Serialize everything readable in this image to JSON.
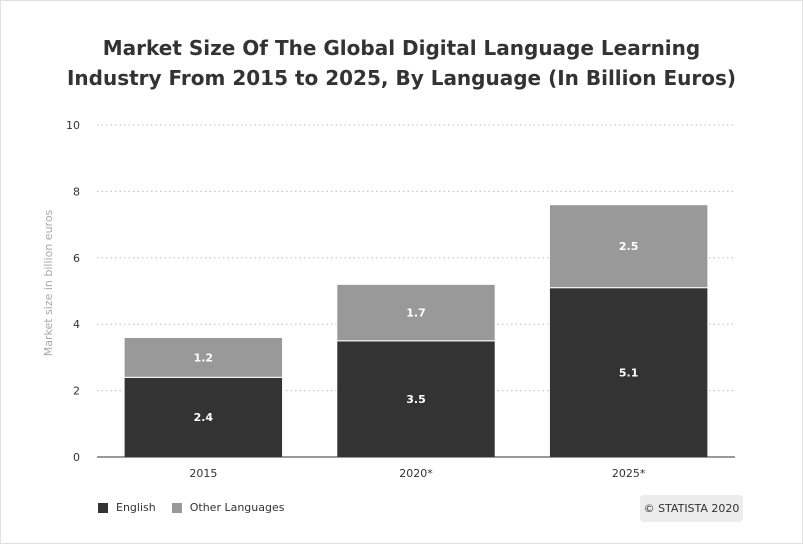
{
  "title_line1": "Market Size Of The Global Digital Language Learning",
  "title_line2": "Industry From 2015 to 2025, By Language (In Billion Euros)",
  "credit": "© STATISTA 2020",
  "chart_data": {
    "type": "bar",
    "stacked": true,
    "categories": [
      "2015",
      "2020*",
      "2025*"
    ],
    "series": [
      {
        "name": "English",
        "values": [
          2.4,
          3.5,
          5.1
        ],
        "color": "#333333",
        "label_color": "#ffffff"
      },
      {
        "name": "Other Languages",
        "values": [
          1.2,
          1.7,
          2.5
        ],
        "color": "#999999",
        "label_color": "#ffffff"
      }
    ],
    "ylabel": "Market size in billion euros",
    "xlabel": "",
    "ylim": [
      0,
      10
    ],
    "yticks": [
      0,
      2,
      4,
      6,
      8,
      10
    ],
    "grid": "dotted-horizontal",
    "legend_position": "bottom-left"
  }
}
